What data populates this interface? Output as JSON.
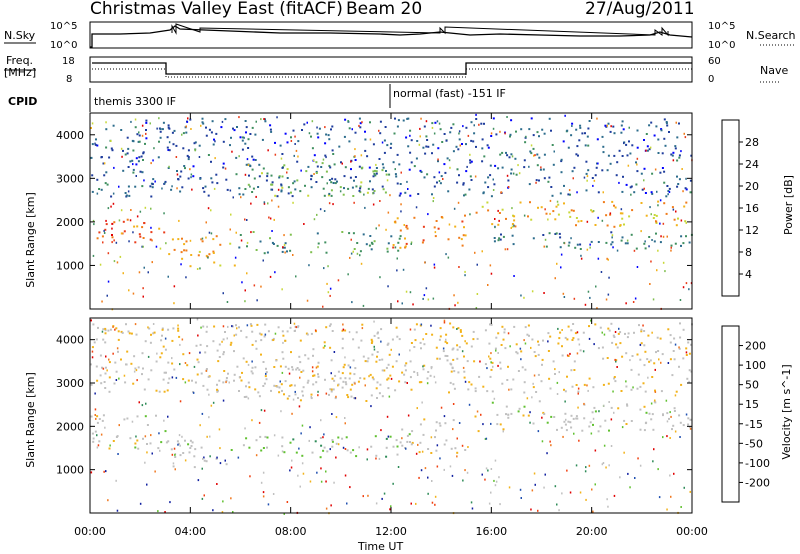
{
  "header": {
    "title": "Christmas Valley East (fitACF)",
    "beam": "Beam 20",
    "date": "27/Aug/2011"
  },
  "top_panels": {
    "nsky_label": "N.Sky",
    "nsky_ticks": [
      "10^5",
      "10^0"
    ],
    "nsearch_label": "N.Search",
    "nsearch_ticks": [
      "10^5",
      "10^0"
    ],
    "freq_label_1": "Freq.",
    "freq_label_2": "[MHz]",
    "freq_ticks": [
      "18",
      "8"
    ],
    "nave_label": "Nave",
    "nave_ticks": [
      "60",
      "0"
    ],
    "cpid_label": "CPID",
    "cpid_segments": [
      "themis 3300 IF",
      "normal (fast) -151 IF"
    ]
  },
  "chart_data": [
    {
      "type": "heatmap",
      "title": "",
      "xlabel": "Time UT",
      "ylabel": "Slant Range [km]",
      "xlim": [
        0,
        24
      ],
      "ylim": [
        0,
        4500
      ],
      "x_ticks": [
        "00:00",
        "04:00",
        "08:00",
        "12:00",
        "16:00",
        "20:00",
        "00:00"
      ],
      "y_ticks": [
        "1000",
        "2000",
        "3000",
        "4000"
      ],
      "colorbar": {
        "label": "Power [dB]",
        "ticks": [
          "28",
          "24",
          "20",
          "16",
          "12",
          "8",
          "4"
        ],
        "range": [
          0,
          30
        ],
        "colors": [
          "#0000ff",
          "#1e3c9c",
          "#2c6c8c",
          "#3f8f5f",
          "#7fbf4f",
          "#c8d838",
          "#f2b21a",
          "#f07c1a",
          "#ea3c1a",
          "#e00000"
        ]
      },
      "regions": [
        {
          "t0": 0.0,
          "t1": 3.0,
          "r0": 1500,
          "r1": 2100,
          "value": 24
        },
        {
          "t0": 3.0,
          "t1": 5.8,
          "r0": 1000,
          "r1": 1700,
          "value": 20
        },
        {
          "t0": 5.8,
          "t1": 12.5,
          "r0": 1300,
          "r1": 1800,
          "value": 10
        },
        {
          "t0": 6.0,
          "t1": 12.0,
          "r0": 2600,
          "r1": 3400,
          "value": 12
        },
        {
          "t0": 12.0,
          "t1": 15.0,
          "r0": 1400,
          "r1": 2200,
          "value": 22
        },
        {
          "t0": 15.3,
          "t1": 24.0,
          "r0": 1900,
          "r1": 2500,
          "value": 20
        },
        {
          "t0": 15.3,
          "t1": 24.0,
          "r0": 1400,
          "r1": 1800,
          "value": 8
        },
        {
          "t0": 0.0,
          "t1": 24.0,
          "r0": 2600,
          "r1": 4400,
          "value": 6
        }
      ]
    },
    {
      "type": "heatmap",
      "title": "",
      "xlabel": "Time UT",
      "ylabel": "Slant Range [km]",
      "xlim": [
        0,
        24
      ],
      "ylim": [
        0,
        4500
      ],
      "x_ticks": [
        "00:00",
        "04:00",
        "08:00",
        "12:00",
        "16:00",
        "20:00",
        "00:00"
      ],
      "y_ticks": [
        "1000",
        "2000",
        "3000",
        "4000"
      ],
      "colorbar": {
        "label": "Velocity [m s^-1]",
        "ticks": [
          "200",
          "100",
          "50",
          "15",
          "-15",
          "-50",
          "-100",
          "-200"
        ],
        "range": [
          -250,
          250
        ],
        "colors": [
          "#e00000",
          "#f04010",
          "#f07820",
          "#f2b21a",
          "#c0c0c0",
          "#c0c0c0",
          "#60c030",
          "#2e8b57",
          "#2050b0",
          "#1020a0"
        ]
      },
      "regions": [
        {
          "t0": 0.0,
          "t1": 3.0,
          "r0": 1500,
          "r1": 2300,
          "value": 0
        },
        {
          "t0": 3.0,
          "t1": 5.8,
          "r0": 1000,
          "r1": 1700,
          "value": 0
        },
        {
          "t0": 6.0,
          "t1": 12.5,
          "r0": 1300,
          "r1": 1800,
          "value": 60
        },
        {
          "t0": 6.0,
          "t1": 12.0,
          "r0": 2600,
          "r1": 3400,
          "value": -40
        },
        {
          "t0": 12.0,
          "t1": 15.0,
          "r0": 1400,
          "r1": 2200,
          "value": 0
        },
        {
          "t0": 15.3,
          "t1": 24.0,
          "r0": 1900,
          "r1": 2600,
          "value": 0
        },
        {
          "t0": 0.0,
          "t1": 24.0,
          "r0": 2800,
          "r1": 4400,
          "value": -30
        }
      ]
    }
  ]
}
